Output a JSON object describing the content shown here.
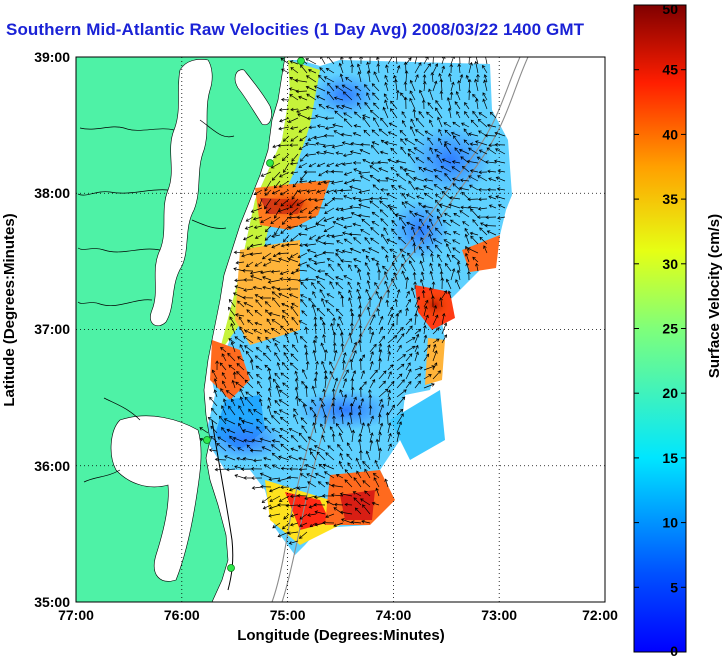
{
  "title": "Southern Mid-Atlantic Raw Velocities (1 Day Avg) 2008/03/22 1400 GMT",
  "map": {
    "x_label": "Longitude (Degrees:Minutes)",
    "y_label": "Latitude (Degrees:Minutes)",
    "x_ticks": [
      "77:00",
      "76:00",
      "75:00",
      "74:00",
      "73:00",
      "72:00"
    ],
    "y_ticks": [
      "39:00",
      "38:00",
      "37:00",
      "36:00",
      "35:00"
    ],
    "x_range": [
      -77,
      -72
    ],
    "y_range": [
      35,
      39
    ],
    "grid": "dotted",
    "land_color": "#4ef2a6",
    "station_color": "#2ee84a"
  },
  "colorbar": {
    "label": "Surface Velocity (cm/s)",
    "min": 0,
    "max": 50,
    "ticks": [
      "0",
      "5",
      "10",
      "15",
      "20",
      "25",
      "30",
      "35",
      "40",
      "45",
      "50"
    ]
  }
}
